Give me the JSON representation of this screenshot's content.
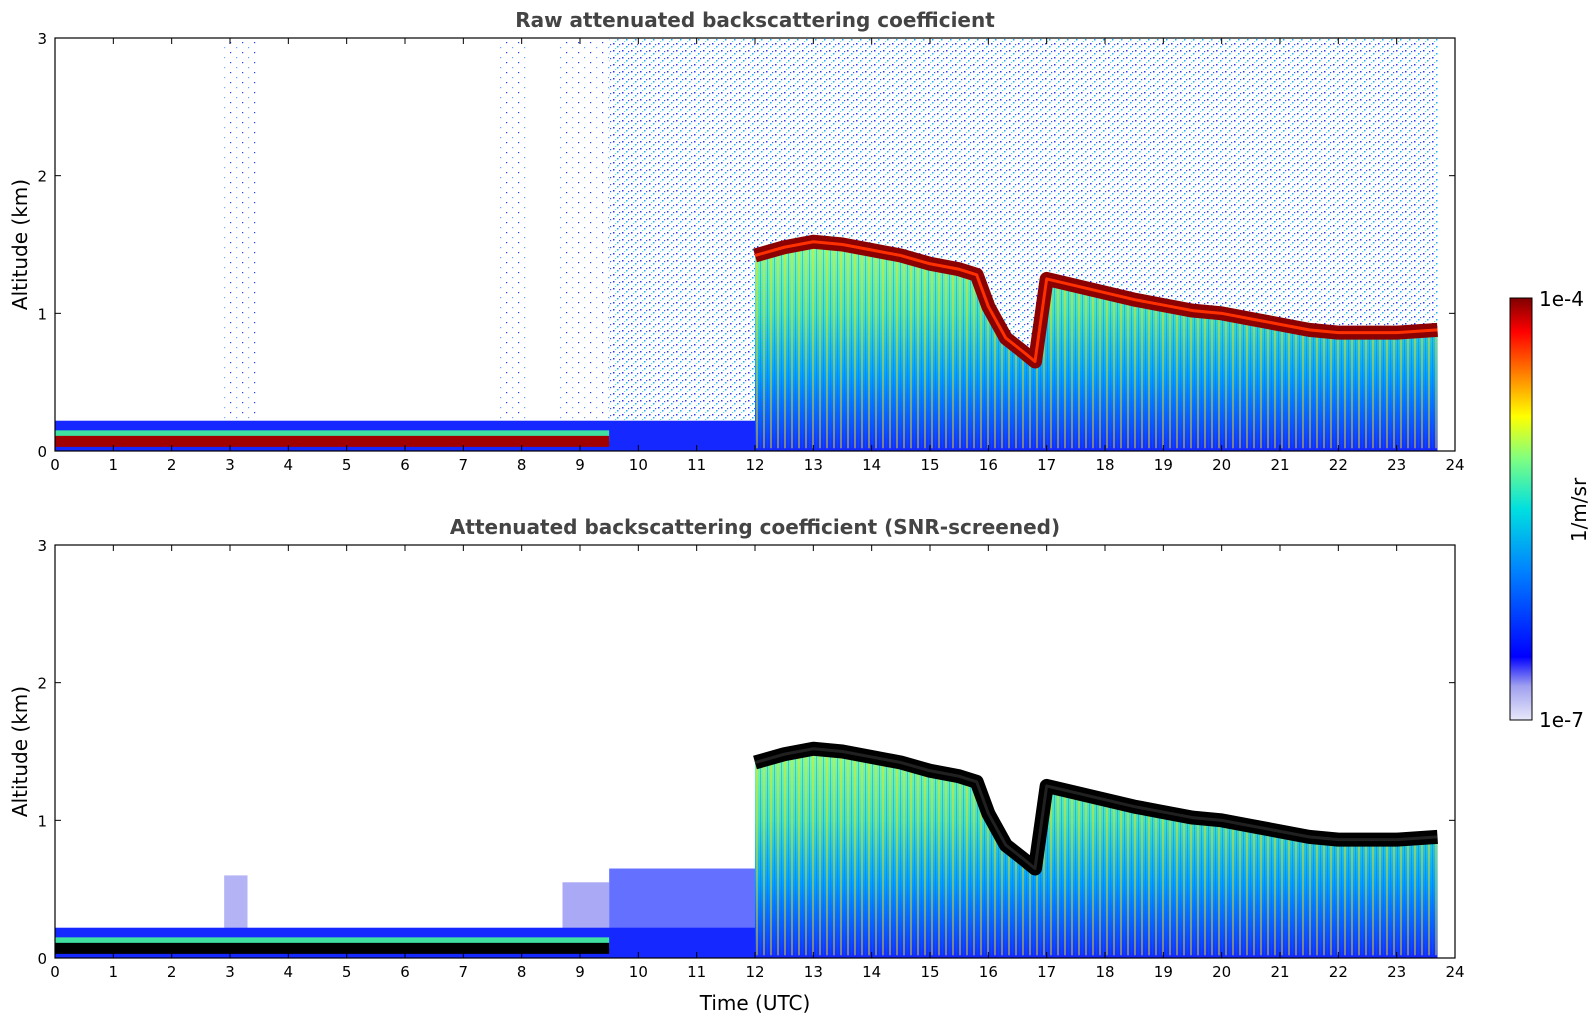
{
  "chart_data": [
    {
      "type": "heatmap",
      "title": "Raw attenuated backscattering coefficient",
      "xlabel": "",
      "ylabel": "Altitude (km)",
      "xlim": [
        0,
        24
      ],
      "ylim": [
        0,
        3
      ],
      "x_ticks": [
        "0",
        "1",
        "2",
        "3",
        "4",
        "5",
        "6",
        "7",
        "8",
        "9",
        "10",
        "11",
        "12",
        "13",
        "14",
        "15",
        "16",
        "17",
        "18",
        "19",
        "20",
        "21",
        "22",
        "23",
        "24"
      ],
      "y_ticks": [
        "0",
        "1",
        "2",
        "3"
      ],
      "data_end_time": 23.7,
      "cloud_base_layer": {
        "name": "cloud layer (max backscatter)",
        "times": [
          12.0,
          12.5,
          13.0,
          13.5,
          14.0,
          14.5,
          15.0,
          15.5,
          15.8,
          16.0,
          16.3,
          16.6,
          16.8,
          17.0,
          17.5,
          18.0,
          18.5,
          19.0,
          19.5,
          20.0,
          20.5,
          21.0,
          21.5,
          22.0,
          22.5,
          23.0,
          23.7
        ],
        "altitudes_km": [
          1.42,
          1.48,
          1.52,
          1.5,
          1.46,
          1.42,
          1.36,
          1.32,
          1.28,
          1.05,
          0.82,
          0.72,
          0.65,
          1.25,
          1.2,
          1.15,
          1.1,
          1.06,
          1.02,
          1.0,
          0.96,
          0.92,
          0.88,
          0.86,
          0.86,
          0.86,
          0.88
        ]
      },
      "low_layer": {
        "name": "near-surface layer",
        "time_range": [
          0,
          9.5
        ],
        "altitude_km": 0.07
      }
    },
    {
      "type": "heatmap",
      "title": "Attenuated backscattering coefficient (SNR-screened)",
      "xlabel": "Time (UTC)",
      "ylabel": "Altitude (km)",
      "xlim": [
        0,
        24
      ],
      "ylim": [
        0,
        3
      ],
      "x_ticks": [
        "0",
        "1",
        "2",
        "3",
        "4",
        "5",
        "6",
        "7",
        "8",
        "9",
        "10",
        "11",
        "12",
        "13",
        "14",
        "15",
        "16",
        "17",
        "18",
        "19",
        "20",
        "21",
        "22",
        "23",
        "24"
      ],
      "y_ticks": [
        "0",
        "1",
        "2",
        "3"
      ],
      "data_end_time": 23.7,
      "cloud_base_layer": {
        "name": "cloud layer (max backscatter)",
        "times": [
          12.0,
          12.5,
          13.0,
          13.5,
          14.0,
          14.5,
          15.0,
          15.5,
          15.8,
          16.0,
          16.3,
          16.6,
          16.8,
          17.0,
          17.5,
          18.0,
          18.5,
          19.0,
          19.5,
          20.0,
          20.5,
          21.0,
          21.5,
          22.0,
          22.5,
          23.0,
          23.7
        ],
        "altitudes_km": [
          1.42,
          1.48,
          1.52,
          1.5,
          1.46,
          1.42,
          1.36,
          1.32,
          1.28,
          1.05,
          0.82,
          0.72,
          0.65,
          1.25,
          1.2,
          1.15,
          1.1,
          1.06,
          1.02,
          1.0,
          0.96,
          0.92,
          0.88,
          0.86,
          0.86,
          0.86,
          0.88
        ]
      },
      "low_layer": {
        "name": "near-surface layer",
        "time_range": [
          0,
          9.5
        ],
        "altitude_km": 0.07
      }
    }
  ],
  "colorbar": {
    "label": "1/m/sr",
    "max_label": "1e-4",
    "min_label": "1e-7",
    "range": [
      1e-07,
      0.0001
    ],
    "colormap": "jet",
    "colors": [
      "#e8e8fa",
      "#a0a0f0",
      "#0000ff",
      "#0080ff",
      "#00e0e0",
      "#80ff80",
      "#ffff00",
      "#ff8000",
      "#ff0000",
      "#800000"
    ]
  }
}
